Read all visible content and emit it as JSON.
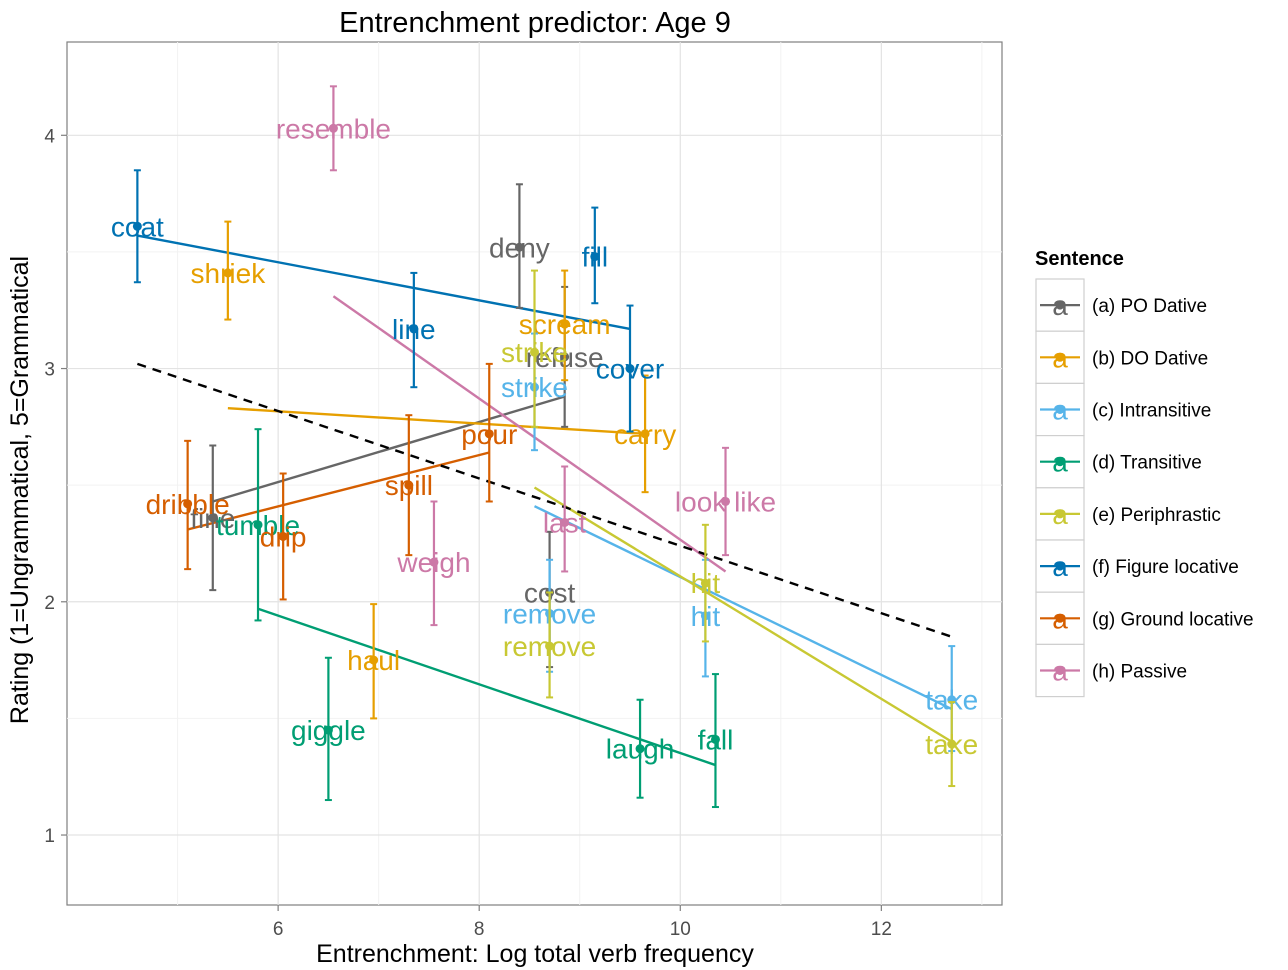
{
  "chart_data": {
    "type": "scatter",
    "title": "Entrenchment predictor: Age 9",
    "xlabel": "Entrenchment: Log total verb frequency",
    "ylabel": "Rating (1=Ungrammatical, 5=Grammatical",
    "xlim": [
      3.9,
      13.2
    ],
    "ylim": [
      0.7,
      4.4
    ],
    "xticks": [
      6,
      8,
      10,
      12
    ],
    "yticks": [
      1,
      2,
      3,
      4
    ],
    "grid": true,
    "legend": {
      "title": "Sentence",
      "placement": "right",
      "key_glyph": "a",
      "entries": [
        "(a) PO Dative",
        "(b) DO Dative",
        "(c) Intransitive",
        "(d) Transitive",
        "(e) Periphrastic",
        "(f) Figure locative",
        "(g) Ground locative",
        "(h) Passive"
      ]
    },
    "overall_trend": {
      "style": "dashed",
      "color": "#000000",
      "x": [
        4.6,
        12.7
      ],
      "y": [
        3.02,
        1.85
      ]
    },
    "series": [
      {
        "name": "(a) PO Dative",
        "color": "#666666",
        "fit": {
          "x": [
            5.35,
            8.85
          ],
          "y": [
            2.43,
            2.88
          ]
        },
        "points": [
          {
            "label": "fine",
            "x": 5.35,
            "y": 2.36,
            "lo": 2.05,
            "hi": 2.67
          },
          {
            "label": "deny",
            "x": 8.4,
            "y": 3.52,
            "lo": 3.26,
            "hi": 3.79
          },
          {
            "label": "refuse",
            "x": 8.85,
            "y": 3.05,
            "lo": 2.75,
            "hi": 3.35
          },
          {
            "label": "cost",
            "x": 8.7,
            "y": 2.04,
            "lo": 1.72,
            "hi": 2.3
          }
        ]
      },
      {
        "name": "(b) DO Dative",
        "color": "#E69F00",
        "fit": {
          "x": [
            5.5,
            9.65
          ],
          "y": [
            2.83,
            2.72
          ]
        },
        "points": [
          {
            "label": "shriek",
            "x": 5.5,
            "y": 3.41,
            "lo": 3.21,
            "hi": 3.63
          },
          {
            "label": "scream",
            "x": 8.85,
            "y": 3.19,
            "lo": 2.95,
            "hi": 3.42
          },
          {
            "label": "carry",
            "x": 9.65,
            "y": 2.72,
            "lo": 2.47,
            "hi": 2.97
          },
          {
            "label": "haul",
            "x": 6.95,
            "y": 1.75,
            "lo": 1.5,
            "hi": 1.99
          }
        ]
      },
      {
        "name": "(c) Intransitive",
        "color": "#56B4E9",
        "fit": {
          "x": [
            8.55,
            12.7
          ],
          "y": [
            2.41,
            1.54
          ]
        },
        "points": [
          {
            "label": "strike",
            "x": 8.55,
            "y": 2.92,
            "lo": 2.65,
            "hi": 3.15
          },
          {
            "label": "remove",
            "x": 8.7,
            "y": 1.95,
            "lo": 1.7,
            "hi": 2.18
          },
          {
            "label": "hit",
            "x": 10.25,
            "y": 1.94,
            "lo": 1.68,
            "hi": 2.18
          },
          {
            "label": "take",
            "x": 12.7,
            "y": 1.58,
            "lo": 1.36,
            "hi": 1.81
          }
        ]
      },
      {
        "name": "(d) Transitive",
        "color": "#009E73",
        "fit": {
          "x": [
            5.8,
            10.35
          ],
          "y": [
            1.97,
            1.3
          ]
        },
        "points": [
          {
            "label": "tumble",
            "x": 5.8,
            "y": 2.33,
            "lo": 1.92,
            "hi": 2.74
          },
          {
            "label": "giggle",
            "x": 6.5,
            "y": 1.45,
            "lo": 1.15,
            "hi": 1.76
          },
          {
            "label": "laugh",
            "x": 9.6,
            "y": 1.37,
            "lo": 1.16,
            "hi": 1.58
          },
          {
            "label": "fall",
            "x": 10.35,
            "y": 1.41,
            "lo": 1.12,
            "hi": 1.69
          }
        ]
      },
      {
        "name": "(e) Periphrastic",
        "color": "#C8C833",
        "fit": {
          "x": [
            8.55,
            12.7
          ],
          "y": [
            2.49,
            1.4
          ]
        },
        "points": [
          {
            "label": "strike",
            "x": 8.55,
            "y": 3.07,
            "lo": 2.75,
            "hi": 3.42
          },
          {
            "label": "remove",
            "x": 8.7,
            "y": 1.81,
            "lo": 1.59,
            "hi": 2.04
          },
          {
            "label": "hit",
            "x": 10.25,
            "y": 2.08,
            "lo": 1.83,
            "hi": 2.33
          },
          {
            "label": "take",
            "x": 12.7,
            "y": 1.39,
            "lo": 1.21,
            "hi": 1.57
          }
        ]
      },
      {
        "name": "(f) Figure locative",
        "color": "#0072B2",
        "fit": {
          "x": [
            4.6,
            9.5
          ],
          "y": [
            3.57,
            3.17
          ]
        },
        "points": [
          {
            "label": "coat",
            "x": 4.6,
            "y": 3.61,
            "lo": 3.37,
            "hi": 3.85
          },
          {
            "label": "fill",
            "x": 9.15,
            "y": 3.48,
            "lo": 3.28,
            "hi": 3.69
          },
          {
            "label": "line",
            "x": 7.35,
            "y": 3.17,
            "lo": 2.92,
            "hi": 3.41
          },
          {
            "label": "cover",
            "x": 9.5,
            "y": 3.0,
            "lo": 2.73,
            "hi": 3.27
          }
        ]
      },
      {
        "name": "(g) Ground locative",
        "color": "#D55E00",
        "fit": {
          "x": [
            5.1,
            8.1
          ],
          "y": [
            2.31,
            2.64
          ]
        },
        "points": [
          {
            "label": "dribble",
            "x": 5.1,
            "y": 2.42,
            "lo": 2.14,
            "hi": 2.69
          },
          {
            "label": "drip",
            "x": 6.05,
            "y": 2.28,
            "lo": 2.01,
            "hi": 2.55
          },
          {
            "label": "spill",
            "x": 7.3,
            "y": 2.5,
            "lo": 2.2,
            "hi": 2.8
          },
          {
            "label": "pour",
            "x": 8.1,
            "y": 2.72,
            "lo": 2.43,
            "hi": 3.02
          }
        ]
      },
      {
        "name": "(h) Passive",
        "color": "#CC79A7",
        "fit": {
          "x": [
            6.55,
            10.45
          ],
          "y": [
            3.31,
            2.13
          ]
        },
        "points": [
          {
            "label": "resemble",
            "x": 6.55,
            "y": 4.03,
            "lo": 3.85,
            "hi": 4.21
          },
          {
            "label": "weigh",
            "x": 7.55,
            "y": 2.17,
            "lo": 1.9,
            "hi": 2.43
          },
          {
            "label": "last",
            "x": 8.85,
            "y": 2.34,
            "lo": 2.13,
            "hi": 2.58
          },
          {
            "label": "look like",
            "x": 10.45,
            "y": 2.43,
            "lo": 2.2,
            "hi": 2.66
          }
        ]
      }
    ]
  }
}
